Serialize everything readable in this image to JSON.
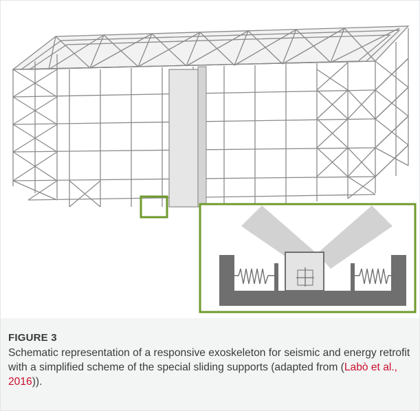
{
  "figure": {
    "label": "FIGURE 3",
    "caption_prefix": "Schematic representation of a responsive exoskeleton for seismic and energy retrofit with a simplified scheme of the special sliding supports (adapted from (",
    "citation_text": "Labò et al., 2016",
    "caption_suffix": ")).",
    "colors": {
      "highlight": "#6f9a2c",
      "citation": "#c8102e",
      "structure_stroke": "#8a8a8a",
      "support_dark": "#6f6f6f",
      "support_light": "#c9c9c9"
    }
  }
}
